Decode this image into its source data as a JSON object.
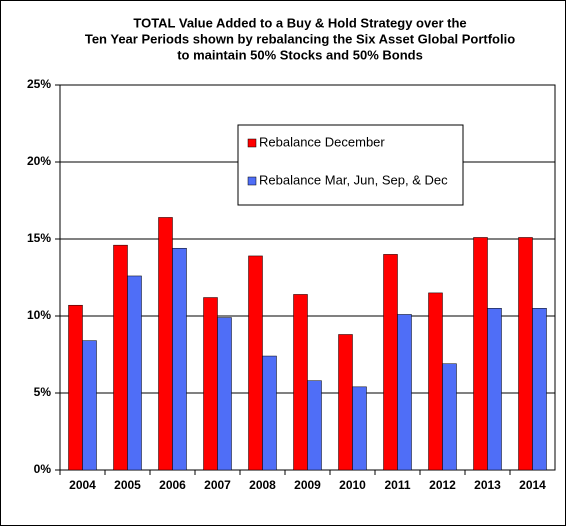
{
  "chart_data": {
    "type": "bar",
    "title": [
      "TOTAL  Value Added to a Buy & Hold Strategy over the",
      "Ten Year Periods shown by rebalancing the Six Asset  Global Portfolio",
      "to maintain 50%  Stocks  and 50%  Bonds"
    ],
    "categories": [
      "2004",
      "2005",
      "2006",
      "2007",
      "2008",
      "2009",
      "2010",
      "2011",
      "2012",
      "2013",
      "2014"
    ],
    "series": [
      {
        "name": "Rebalance December",
        "color": "#ff0000",
        "values": [
          10.7,
          14.6,
          16.4,
          11.2,
          13.9,
          11.4,
          8.8,
          14.0,
          11.5,
          15.1,
          15.1
        ]
      },
      {
        "name": "Rebalance Mar, Jun, Sep, & Dec",
        "color": "#4f6ef7",
        "values": [
          8.4,
          12.6,
          14.4,
          9.9,
          7.4,
          5.8,
          5.4,
          10.1,
          6.9,
          10.5,
          10.5
        ]
      }
    ],
    "ylim": [
      0,
      25
    ],
    "yticks": [
      {
        "value": 0,
        "label": "0%"
      },
      {
        "value": 5,
        "label": "5%"
      },
      {
        "value": 10,
        "label": "10%"
      },
      {
        "value": 15,
        "label": "15%"
      },
      {
        "value": 20,
        "label": "20%"
      },
      {
        "value": 25,
        "label": "25%"
      }
    ],
    "grid": true
  }
}
